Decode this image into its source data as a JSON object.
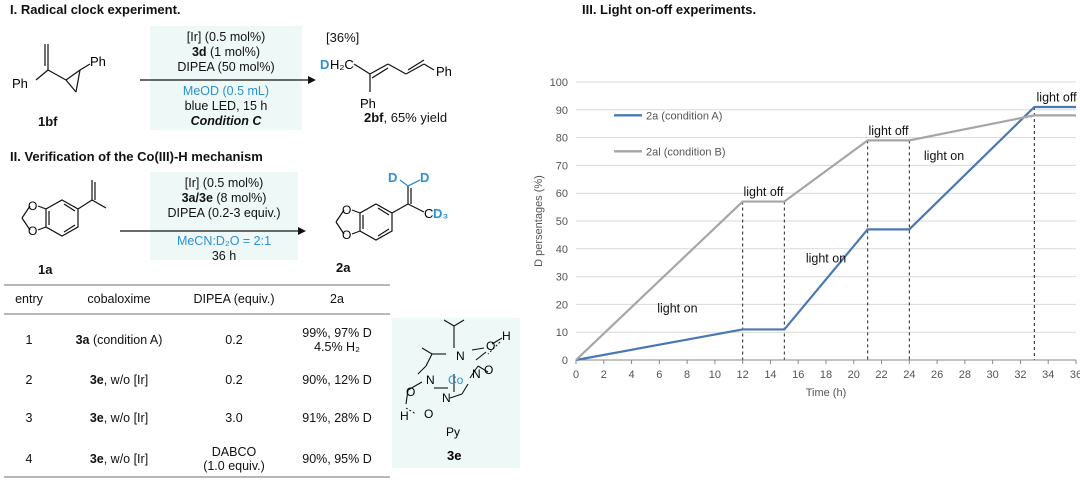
{
  "section1": {
    "title": "I. Radical clock experiment.",
    "substrate": {
      "label": "1bf",
      "ph_a": "Ph",
      "ph_b": "Ph"
    },
    "conditions": [
      "[Ir] (0.5 mol%)",
      "3d",
      " (1 mol%)",
      "DIPEA (50 mol%)",
      "MeOD (0.5 mL)",
      "blue LED, 15 h",
      "Condition C"
    ],
    "product": {
      "ratio": "[36%]",
      "label": "2bf",
      "yield": ", 65% yield",
      "d": "D",
      "h2c": "H₂C",
      "ph_a": "Ph",
      "ph_b": "Ph"
    }
  },
  "section2": {
    "title": "II. Verification of the Co(III)-H mechanism",
    "substrate": {
      "label": "1a"
    },
    "conditions": [
      "[Ir] (0.5 mol%)",
      "3a/3e",
      " (8 mol%)",
      "DIPEA (0.2-3 equiv.)",
      "MeCN:D₂O = 2:1",
      "36 h"
    ],
    "product": {
      "label": "2a",
      "d1": "D",
      "d2": "D",
      "cd3_c": "C",
      "cd3_d": "D₃"
    }
  },
  "table": {
    "headers": [
      "entry",
      "cobaloxime",
      "DIPEA (equiv.)",
      "2a"
    ],
    "rows": [
      {
        "entry": "1",
        "cat_bold": "3a",
        "cat_rest": " (condition A)",
        "dipea": "0.2",
        "dipea2": "",
        "result": "99%, 97% D",
        "result2": "4.5% H₂"
      },
      {
        "entry": "2",
        "cat_bold": "3e",
        "cat_rest": ", w/o [Ir]",
        "dipea": "0.2",
        "dipea2": "",
        "result": "90%, 12% D",
        "result2": ""
      },
      {
        "entry": "3",
        "cat_bold": "3e",
        "cat_rest": ", w/o [Ir]",
        "dipea": "3.0",
        "dipea2": "",
        "result": "91%, 28% D",
        "result2": ""
      },
      {
        "entry": "4",
        "cat_bold": "3e",
        "cat_rest": ", w/o [Ir]",
        "dipea": "DABCO",
        "dipea2": "(1.0 equiv.)",
        "result": "90%, 95% D",
        "result2": ""
      }
    ]
  },
  "catalyst": {
    "label": "3e",
    "co": "Co",
    "n1": "N",
    "n2": "N",
    "n3": "N",
    "n4": "N",
    "o1": "O",
    "o2": "O",
    "o3": "O",
    "o4": "O",
    "h1": "H",
    "h2": "H",
    "py": "Py"
  },
  "section3": {
    "title": "III. Light on-off experiments."
  },
  "colors": {
    "accent_blue": "#2e90d4",
    "series_a": "#4a78b5",
    "series_b": "#a6a6a6",
    "box_bg": "#eef8f6"
  },
  "chart_data": {
    "type": "line",
    "title": "",
    "xlabel": "Time (h)",
    "ylabel": "D persentages (%)",
    "xlim": [
      0,
      36
    ],
    "ylim": [
      0,
      100
    ],
    "xticks": [
      0,
      2,
      4,
      6,
      8,
      10,
      12,
      14,
      16,
      18,
      20,
      22,
      24,
      26,
      28,
      30,
      32,
      34,
      36
    ],
    "yticks": [
      0,
      10,
      20,
      30,
      40,
      50,
      60,
      70,
      80,
      90,
      100
    ],
    "series": [
      {
        "name": "2a (condition A)",
        "color": "#4a78b5",
        "x": [
          0,
          12,
          15,
          21,
          24,
          33,
          36
        ],
        "y": [
          0,
          11,
          11,
          47,
          47,
          91,
          91
        ]
      },
      {
        "name": "2al (condition B)",
        "color": "#a6a6a6",
        "x": [
          0,
          12,
          15,
          21,
          24,
          33,
          36
        ],
        "y": [
          0,
          57,
          57,
          79,
          79,
          88,
          88
        ]
      }
    ],
    "markers_x": [
      12,
      15,
      21,
      24,
      33
    ],
    "annotations": [
      {
        "text": "light on",
        "x": 7.3,
        "y": 17
      },
      {
        "text": "light off",
        "x": 13.5,
        "y": 59
      },
      {
        "text": "light on",
        "x": 18.0,
        "y": 35
      },
      {
        "text": "light off",
        "x": 22.5,
        "y": 81
      },
      {
        "text": "light on",
        "x": 26.5,
        "y": 72
      },
      {
        "text": "light off",
        "x": 34.6,
        "y": 93
      }
    ]
  }
}
